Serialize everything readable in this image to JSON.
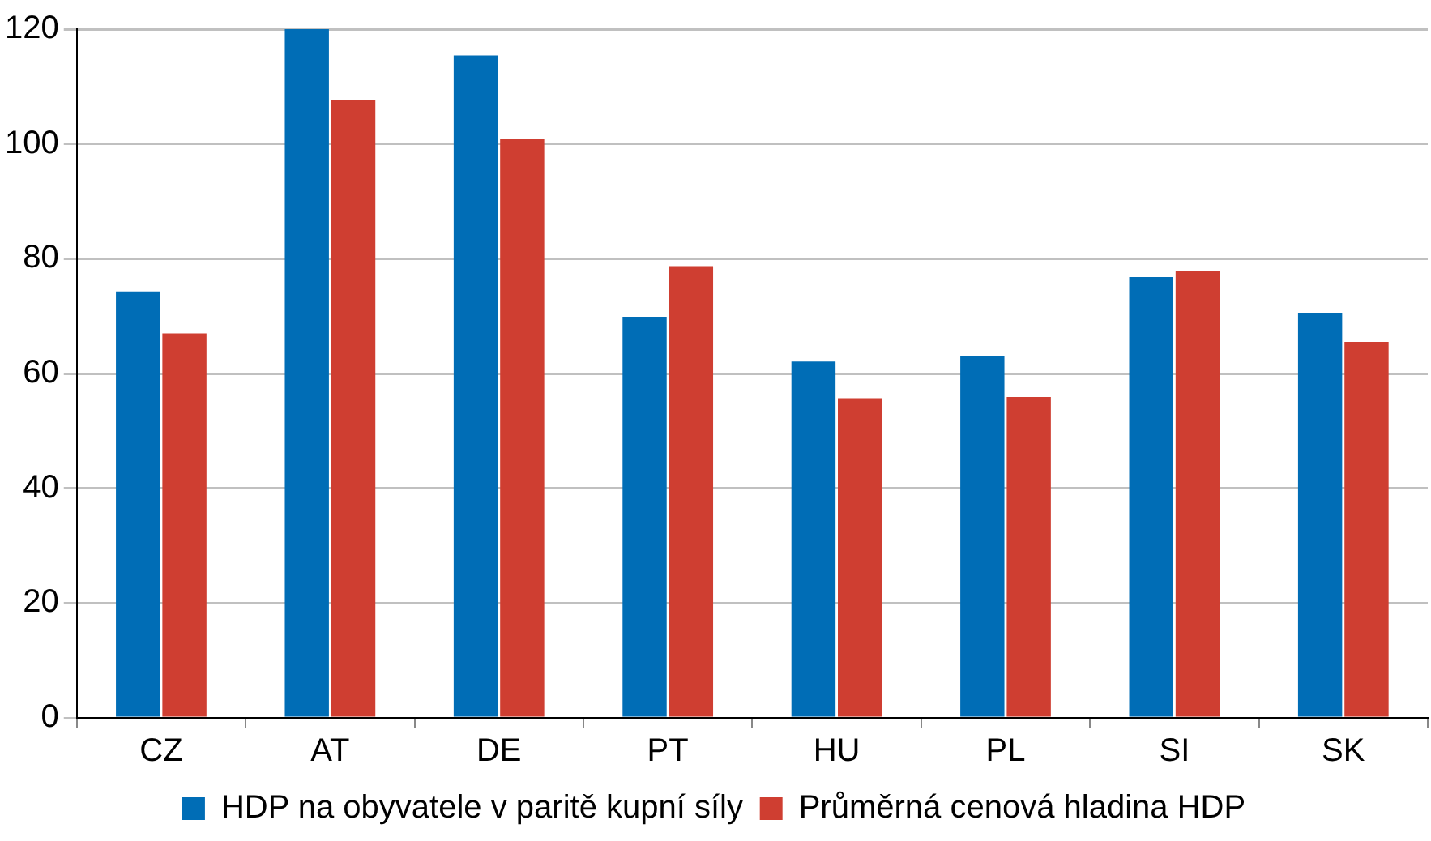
{
  "chart_data": {
    "type": "bar",
    "categories": [
      "CZ",
      "AT",
      "DE",
      "PT",
      "HU",
      "PL",
      "SI",
      "SK"
    ],
    "series": [
      {
        "name": "HDP na obyvatele v paritě kupní síly",
        "color": "#006db6",
        "values": [
          74.3,
          120,
          115.4,
          69.9,
          62.1,
          63.1,
          76.8,
          70.6
        ]
      },
      {
        "name": "Průměrná cenová hladina HDP",
        "color": "#cf3e31",
        "values": [
          67.0,
          107.7,
          100.8,
          78.7,
          55.7,
          55.9,
          77.9,
          65.5
        ]
      }
    ],
    "ylim": [
      0,
      120
    ],
    "yticks": [
      0,
      20,
      40,
      60,
      80,
      100,
      120
    ],
    "grid": "y",
    "legend": "bottom"
  }
}
